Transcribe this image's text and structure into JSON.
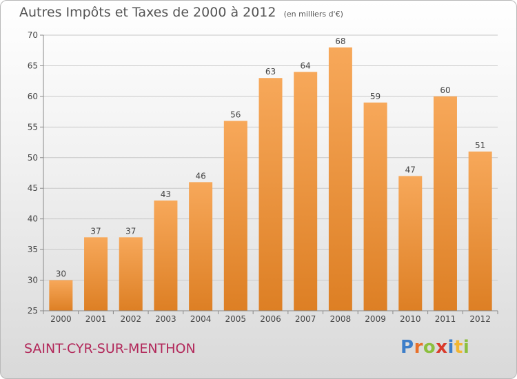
{
  "header": {
    "title": "Autres Impôts et Taxes de 2000 à 2012",
    "unit": "(en milliers d'€)"
  },
  "footer": {
    "town": "SAINT-CYR-SUR-MENTHON"
  },
  "brand": {
    "text": "Proxiti",
    "letters": [
      {
        "char": "P",
        "color": "#3d7ec9"
      },
      {
        "char": "r",
        "color": "#e8702a"
      },
      {
        "char": "o",
        "color": "#8cbf3f"
      },
      {
        "char": "x",
        "color": "#d93a2b"
      },
      {
        "char": "i",
        "color": "#3d7ec9"
      },
      {
        "char": "t",
        "color": "#f2b632"
      },
      {
        "char": "i",
        "color": "#8cbf3f"
      }
    ]
  },
  "colors": {
    "bar_light": "#f7a85a",
    "bar_dark": "#dd7f24",
    "grid": "#c8c8c8",
    "axis_text": "#444444",
    "label_text": "#444444"
  },
  "chart_data": {
    "type": "bar",
    "title": "Autres Impôts et Taxes de 2000 à 2012",
    "subtitle": "(en milliers d'€)",
    "categories": [
      "2000",
      "2001",
      "2002",
      "2003",
      "2004",
      "2005",
      "2006",
      "2007",
      "2008",
      "2009",
      "2010",
      "2011",
      "2012"
    ],
    "values": [
      30,
      37,
      37,
      43,
      46,
      56,
      63,
      64,
      68,
      59,
      47,
      60,
      51
    ],
    "ylim": [
      25,
      70
    ],
    "yticks": [
      25,
      30,
      35,
      40,
      45,
      50,
      55,
      60,
      65,
      70
    ],
    "grid": true,
    "xlabel": "",
    "ylabel": ""
  }
}
